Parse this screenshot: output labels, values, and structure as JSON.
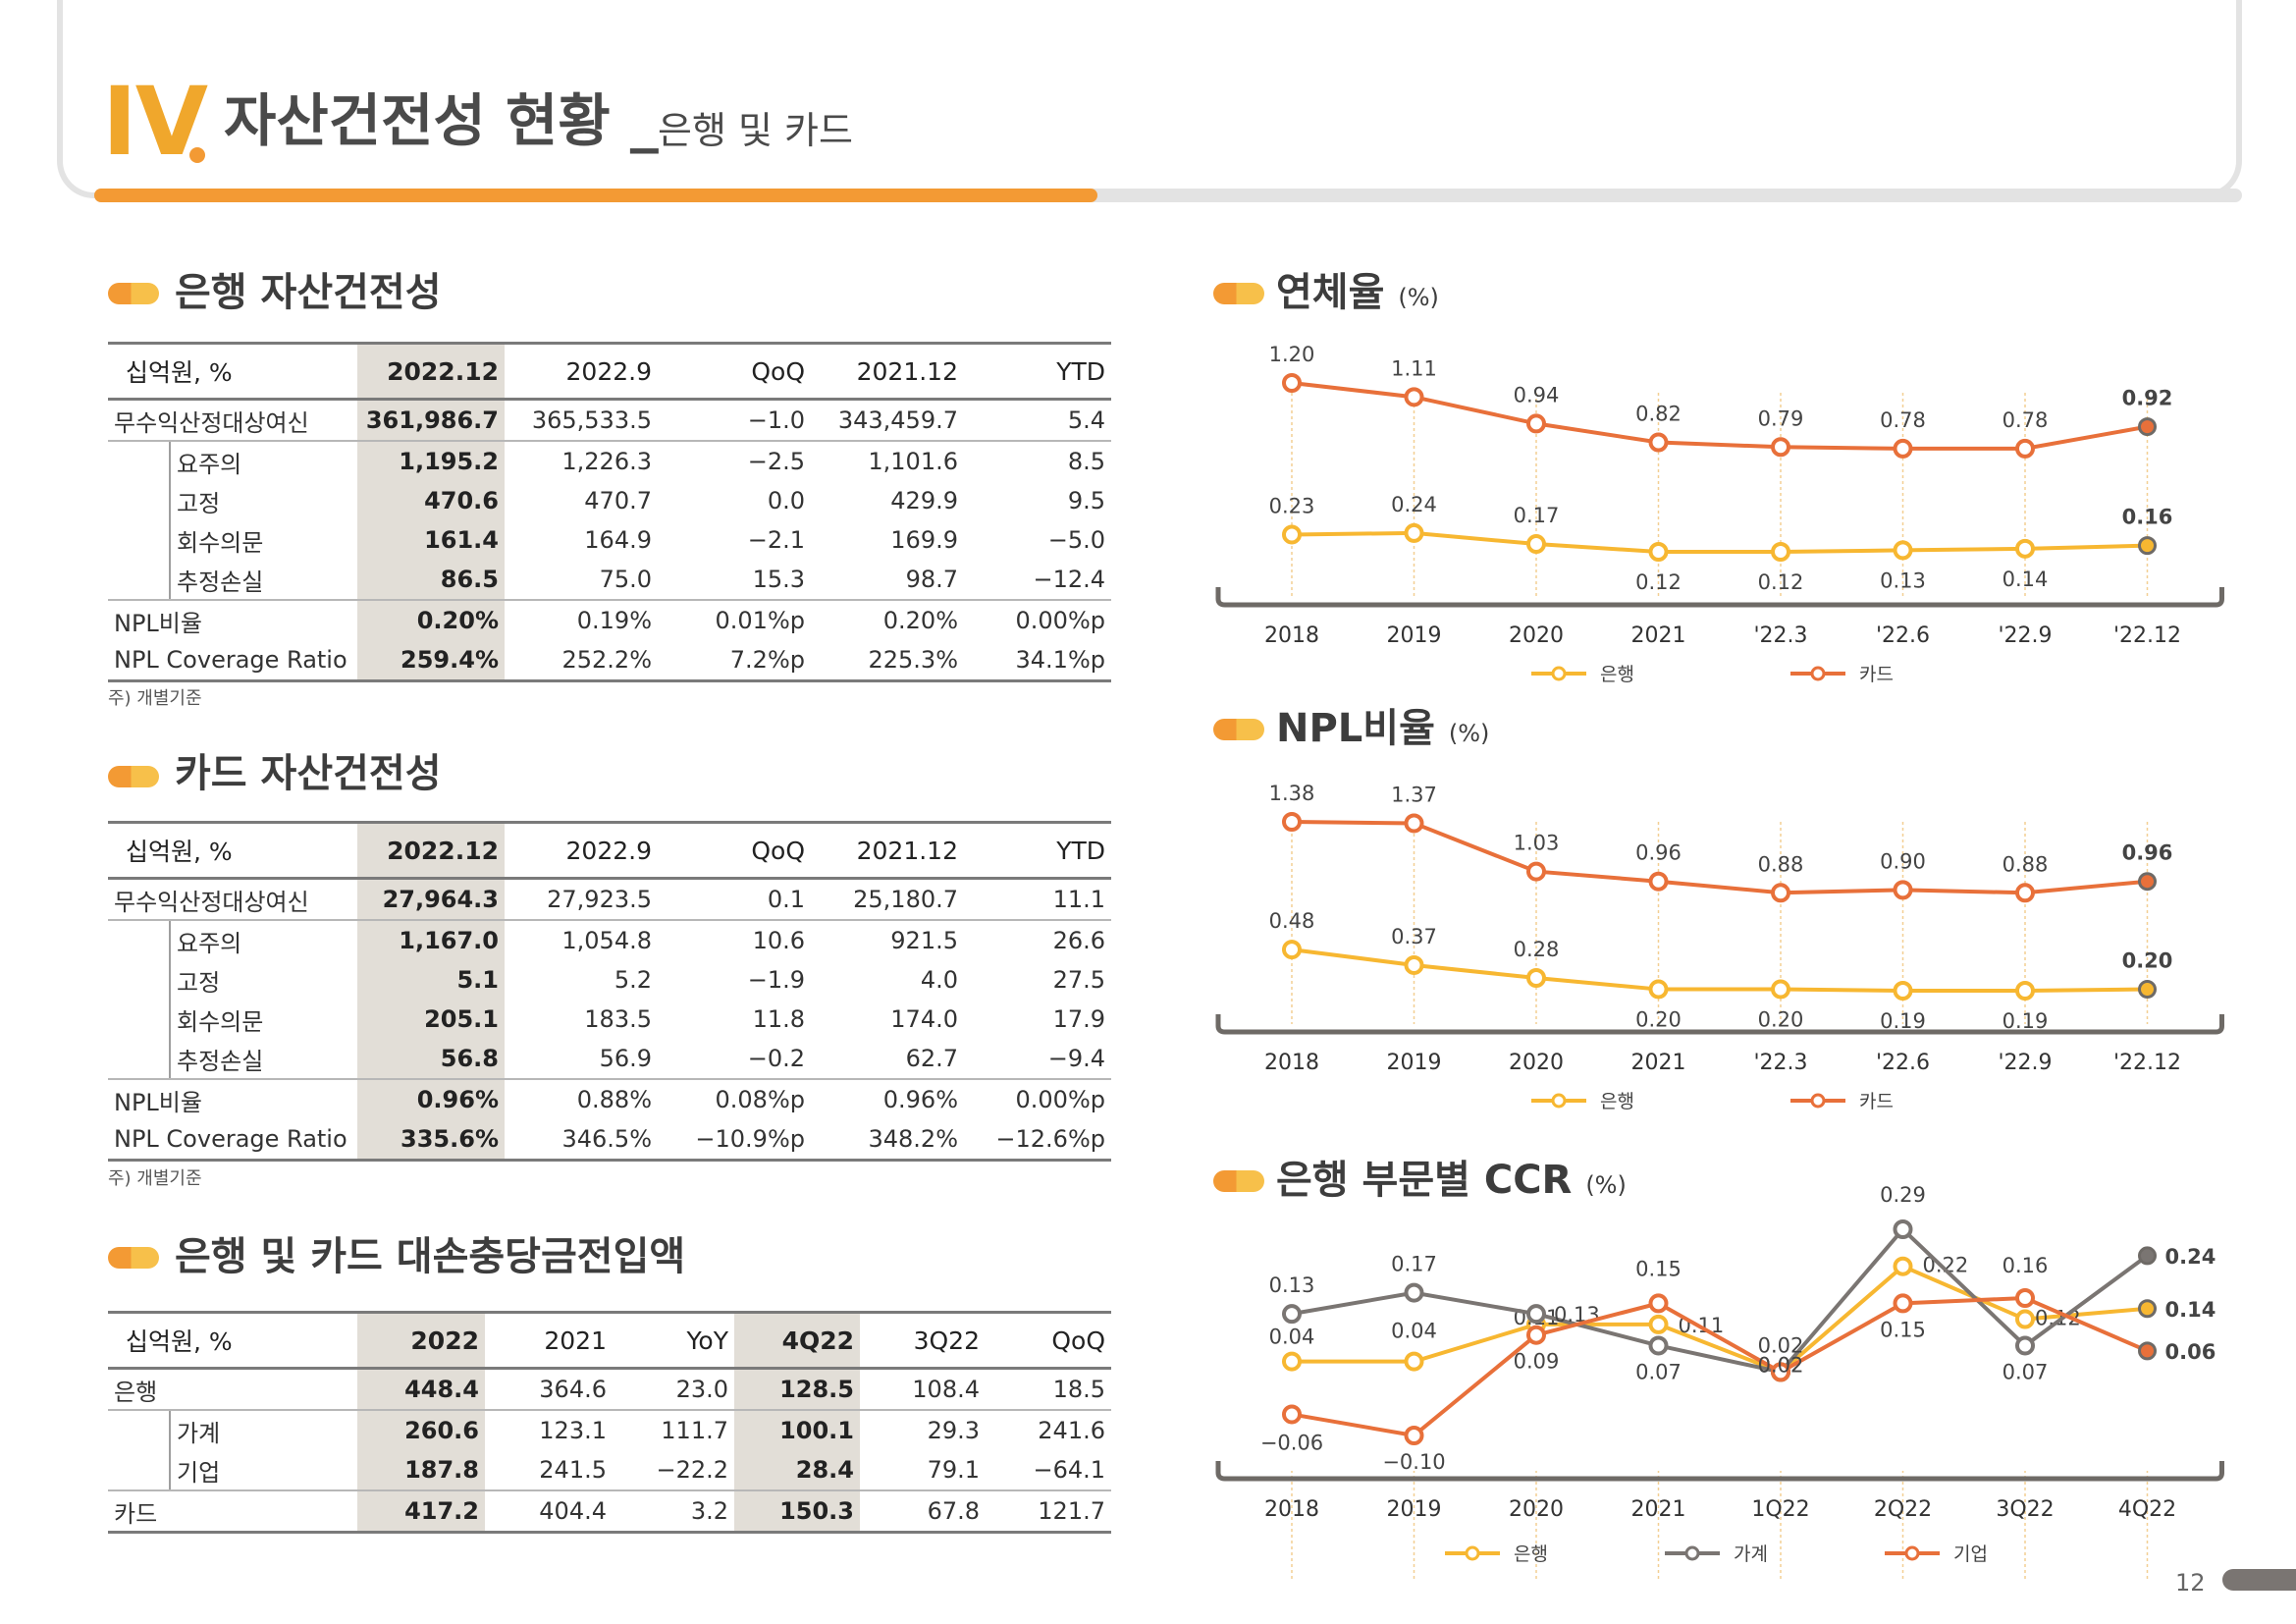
{
  "header": {
    "roman": "IV",
    "title": "자산건전성 현황",
    "separator": "_",
    "subtitle": "은행 및 카드",
    "page_number": "12"
  },
  "colors": {
    "accent": "#f39a34",
    "bank": "#f7b731",
    "card": "#e8703a",
    "household": "#7a7572",
    "shade": "#e2ded7"
  },
  "bank_table": {
    "title": "은행 자산건전성",
    "headers": [
      "십억원, %",
      "2022.12",
      "2022.9",
      "QoQ",
      "2021.12",
      "YTD"
    ],
    "rows": [
      [
        "무수익산정대상여신",
        "361,986.7",
        "365,533.5",
        "-1.0",
        "343,459.7",
        "5.4"
      ],
      [
        "요주의",
        "1,195.2",
        "1,226.3",
        "-2.5",
        "1,101.6",
        "8.5"
      ],
      [
        "고정",
        "470.6",
        "470.7",
        "0.0",
        "429.9",
        "9.5"
      ],
      [
        "회수의문",
        "161.4",
        "164.9",
        "-2.1",
        "169.9",
        "-5.0"
      ],
      [
        "추정손실",
        "86.5",
        "75.0",
        "15.3",
        "98.7",
        "-12.4"
      ],
      [
        "NPL비율",
        "0.20%",
        "0.19%",
        "0.01%p",
        "0.20%",
        "0.00%p"
      ],
      [
        "NPL Coverage Ratio",
        "259.4%",
        "252.2%",
        "7.2%p",
        "225.3%",
        "34.1%p"
      ]
    ],
    "note": "주) 개별기준"
  },
  "card_table": {
    "title": "카드 자산건전성",
    "headers": [
      "십억원, %",
      "2022.12",
      "2022.9",
      "QoQ",
      "2021.12",
      "YTD"
    ],
    "rows": [
      [
        "무수익산정대상여신",
        "27,964.3",
        "27,923.5",
        "0.1",
        "25,180.7",
        "11.1"
      ],
      [
        "요주의",
        "1,167.0",
        "1,054.8",
        "10.6",
        "921.5",
        "26.6"
      ],
      [
        "고정",
        "5.1",
        "5.2",
        "-1.9",
        "4.0",
        "27.5"
      ],
      [
        "회수의문",
        "205.1",
        "183.5",
        "11.8",
        "174.0",
        "17.9"
      ],
      [
        "추정손실",
        "56.8",
        "56.9",
        "-0.2",
        "62.7",
        "-9.4"
      ],
      [
        "NPL비율",
        "0.96%",
        "0.88%",
        "0.08%p",
        "0.96%",
        "0.00%p"
      ],
      [
        "NPL Coverage Ratio",
        "335.6%",
        "346.5%",
        "-10.9%p",
        "348.2%",
        "-12.6%p"
      ]
    ],
    "note": "주) 개별기준"
  },
  "provision_table": {
    "title": "은행 및 카드 대손충당금전입액",
    "headers": [
      "십억원, %",
      "2022",
      "2021",
      "YoY",
      "4Q22",
      "3Q22",
      "QoQ"
    ],
    "rows": [
      [
        "은행",
        "448.4",
        "364.6",
        "23.0",
        "128.5",
        "108.4",
        "18.5"
      ],
      [
        "가계",
        "260.6",
        "123.1",
        "111.7",
        "100.1",
        "29.3",
        "241.6"
      ],
      [
        "기업",
        "187.8",
        "241.5",
        "-22.2",
        "28.4",
        "79.1",
        "-64.1"
      ],
      [
        "카드",
        "417.2",
        "404.4",
        "3.2",
        "150.3",
        "67.8",
        "121.7"
      ]
    ]
  },
  "chart_data": [
    {
      "type": "line",
      "title": "연체율",
      "unit": "(%)",
      "categories": [
        "2018",
        "2019",
        "2020",
        "2021",
        "'22.3",
        "'22.6",
        "'22.9",
        "'22.12"
      ],
      "series": [
        {
          "name": "은행",
          "values": [
            0.23,
            0.24,
            0.17,
            0.12,
            0.12,
            0.13,
            0.14,
            0.16
          ]
        },
        {
          "name": "카드",
          "values": [
            1.2,
            1.11,
            0.94,
            0.82,
            0.79,
            0.78,
            0.78,
            0.92
          ]
        }
      ]
    },
    {
      "type": "line",
      "title": "NPL비율",
      "unit": "(%)",
      "categories": [
        "2018",
        "2019",
        "2020",
        "2021",
        "'22.3",
        "'22.6",
        "'22.9",
        "'22.12"
      ],
      "series": [
        {
          "name": "은행",
          "values": [
            0.48,
            0.37,
            0.28,
            0.2,
            0.2,
            0.19,
            0.19,
            0.2
          ]
        },
        {
          "name": "카드",
          "values": [
            1.38,
            1.37,
            1.03,
            0.96,
            0.88,
            0.9,
            0.88,
            0.96
          ]
        }
      ]
    },
    {
      "type": "line",
      "title": "은행 부문별 CCR",
      "unit": "(%)",
      "categories": [
        "2018",
        "2019",
        "2020",
        "2021",
        "1Q22",
        "2Q22",
        "3Q22",
        "4Q22"
      ],
      "series": [
        {
          "name": "은행",
          "values": [
            0.04,
            0.04,
            0.11,
            0.11,
            0.02,
            0.22,
            0.12,
            0.14
          ]
        },
        {
          "name": "가계",
          "values": [
            0.13,
            0.17,
            0.13,
            0.07,
            0.02,
            0.29,
            0.07,
            0.24
          ]
        },
        {
          "name": "기업",
          "values": [
            -0.06,
            -0.1,
            0.09,
            0.15,
            0.02,
            0.15,
            0.16,
            0.06
          ]
        }
      ]
    }
  ]
}
